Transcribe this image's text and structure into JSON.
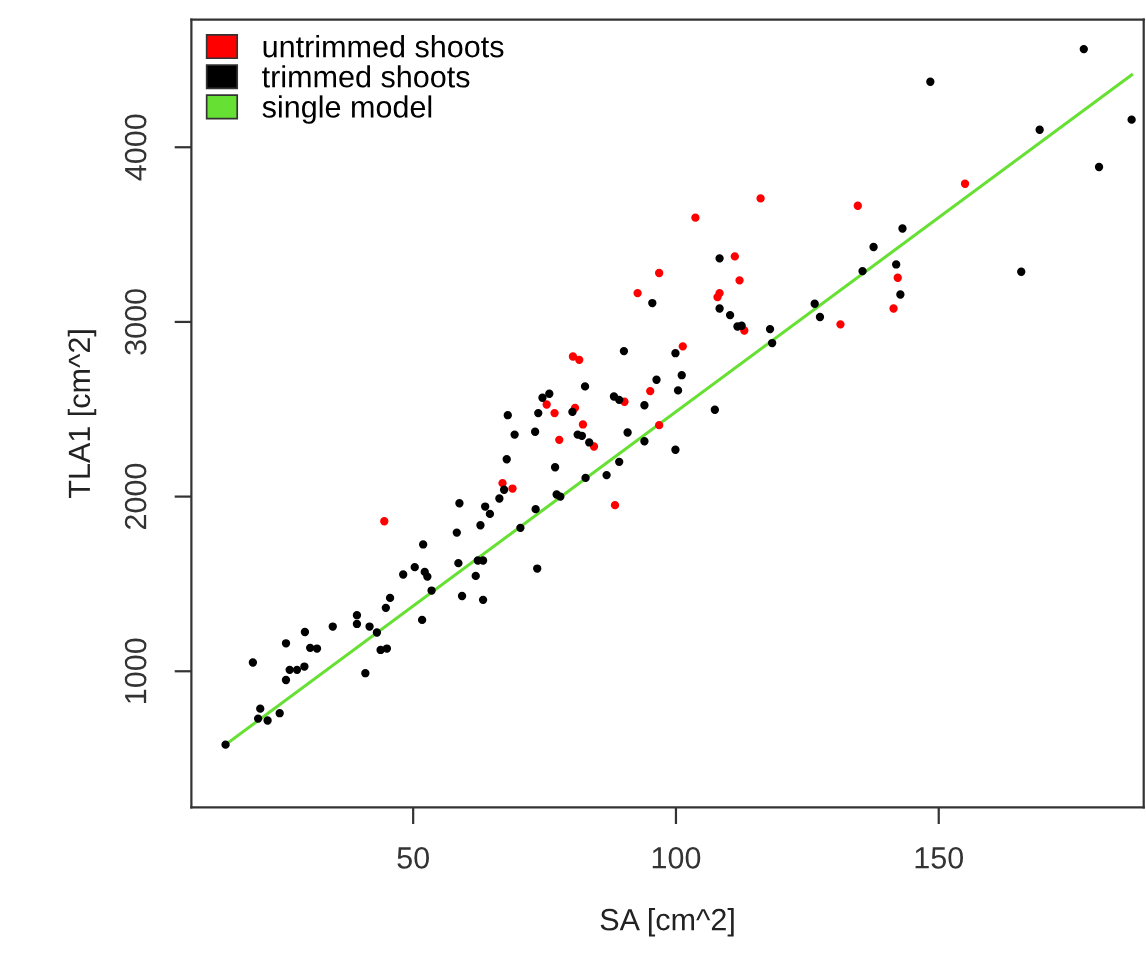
{
  "chart_data": {
    "type": "scatter",
    "xlabel": "SA [cm^2]",
    "ylabel": "TLA1 [cm^2]",
    "xlim": [
      7.8,
      189
    ],
    "ylim": [
      221,
      4731
    ],
    "xticks": [
      50,
      100,
      150
    ],
    "yticks": [
      1000,
      2000,
      3000,
      4000
    ],
    "grid": false,
    "legend": "top left",
    "marker": "circle",
    "series": [
      {
        "name": "untrimmed shoots",
        "color": "#ff0000",
        "x": [
          44.5,
          67.0,
          68.9,
          76.9,
          77.8,
          80.8,
          82.3,
          84.4,
          88.4,
          96.8,
          92.7,
          96.8,
          80.4,
          81.6,
          75.4,
          90.2,
          95.1,
          103.7,
          116.1,
          111.2,
          112.1,
          107.9,
          108.3,
          113.0,
          101.3,
          131.3,
          142.2,
          141.4,
          134.6,
          155.0
        ],
        "values": [
          1859,
          2077,
          2046,
          2478,
          2325,
          2508,
          2413,
          2287,
          1951,
          2409,
          3165,
          3280,
          2802,
          2783,
          2527,
          2543,
          2604,
          3597,
          3707,
          3375,
          3238,
          3142,
          3165,
          2951,
          2860,
          2986,
          3253,
          3077,
          3665,
          3791
        ]
      },
      {
        "name": "trimmed shoots",
        "color": "#000000",
        "x": [
          14.3,
          19.5,
          20.9,
          20.5,
          22.3,
          24.6,
          25.8,
          25.8,
          26.5,
          27.9,
          29.4,
          29.3,
          30.4,
          31.7,
          34.7,
          39.3,
          39.3,
          40.9,
          41.7,
          43.1,
          43.8,
          45.0,
          44.8,
          45.6,
          48.1,
          50.3,
          51.7,
          51.9,
          52.2,
          52.7,
          53.5,
          58.3,
          58.6,
          58.8,
          59.3,
          61.9,
          62.3,
          62.8,
          63.3,
          63.3,
          63.7,
          64.6,
          66.4,
          67.3,
          67.8,
          68.0,
          69.3,
          70.4,
          73.2,
          73.3,
          73.6,
          73.8,
          77.0,
          77.3,
          78.0,
          80.3,
          81.3,
          82.1,
          82.8,
          83.5,
          86.8,
          89.2,
          90.8,
          94.0,
          94.0,
          95.5,
          90.1,
          82.7,
          75.9,
          74.6,
          88.2,
          89.2,
          96.3,
          108.3,
          108.3,
          110.3,
          111.7,
          112.5,
          99.9,
          101.1,
          100.4,
          107.4,
          117.9,
          118.3,
          126.4,
          127.4,
          135.5,
          137.6,
          143.1,
          141.9,
          142.7,
          148.4,
          169.2,
          177.6,
          180.5,
          186.7,
          165.7,
          99.9
        ],
        "values": [
          580,
          1050,
          786,
          729,
          718,
          760,
          1160,
          950,
          1008,
          1008,
          1225,
          1027,
          1134,
          1130,
          1256,
          1321,
          1271,
          989,
          1256,
          1222,
          1122,
          1130,
          1363,
          1420,
          1554,
          1596,
          1294,
          1726,
          1569,
          1542,
          1462,
          1794,
          1619,
          1962,
          1431,
          1546,
          1634,
          1836,
          1634,
          1409,
          1943,
          1901,
          1989,
          2039,
          2214,
          2466,
          2355,
          1821,
          2371,
          1928,
          1588,
          2478,
          2168,
          2012,
          2000,
          2485,
          2355,
          2348,
          2107,
          2310,
          2123,
          2199,
          2367,
          2317,
          2523,
          3108,
          2833,
          2631,
          2589,
          2566,
          2573,
          2554,
          2669,
          3364,
          3077,
          3039,
          2974,
          2978,
          2821,
          2695,
          2608,
          2497,
          2959,
          2879,
          3104,
          3028,
          3291,
          3429,
          3535,
          3329,
          3157,
          4375,
          4100,
          4562,
          3887,
          4158,
          3287,
          2268
        ]
      },
      {
        "name": "single model",
        "color": "#66e033",
        "type": "line",
        "marker": "none",
        "line_style": "solid",
        "x": [
          14.3,
          186.7
        ],
        "values": [
          580,
          4414
        ]
      }
    ]
  }
}
